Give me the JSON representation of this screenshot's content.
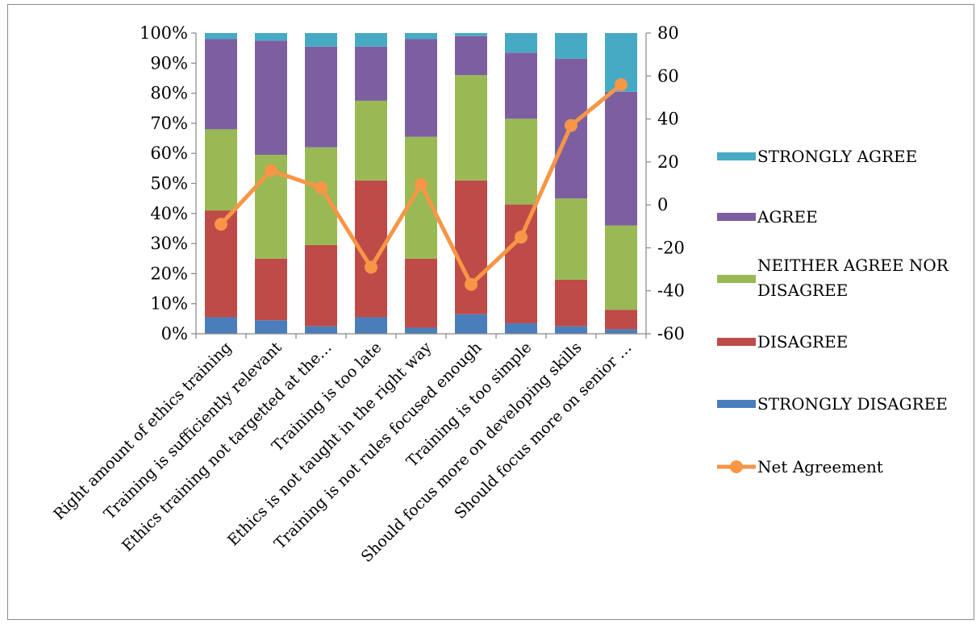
{
  "chart_data": {
    "type": "bar",
    "stacked": true,
    "stack_mode": "percent",
    "categories": [
      "Right amount of ethics training",
      "Training is sufficiently relevant",
      "Ethics training not targetted at the…",
      "Training is too late",
      "Ethics is not taught in the right way",
      "Training is not rules focused enough",
      "Training is too simple",
      "Should focus more on developing skills",
      "Should focus more on senior …"
    ],
    "series": [
      {
        "name": "STRONGLY DISAGREE",
        "color": "#4a7ebb",
        "values": [
          5.5,
          4.5,
          2.5,
          5.5,
          2.0,
          6.5,
          3.5,
          2.5,
          1.5
        ]
      },
      {
        "name": "DISAGREE",
        "color": "#be4b48",
        "values": [
          35.5,
          20.5,
          27.0,
          45.5,
          23.0,
          44.5,
          39.5,
          15.5,
          6.5
        ]
      },
      {
        "name": "NEITHER AGREE NOR DISAGREE",
        "color": "#98b954",
        "values": [
          27.0,
          34.5,
          32.5,
          26.5,
          40.5,
          35.0,
          28.5,
          27.0,
          28.0
        ]
      },
      {
        "name": "AGREE",
        "color": "#7d5fa0",
        "values": [
          30.0,
          38.0,
          33.5,
          18.0,
          32.5,
          13.0,
          22.0,
          46.5,
          44.5
        ]
      },
      {
        "name": "STRONGLY AGREE",
        "color": "#46aac5",
        "values": [
          2.0,
          2.5,
          4.5,
          4.5,
          2.0,
          1.0,
          6.5,
          8.5,
          19.5
        ]
      }
    ],
    "line_series": {
      "name": "Net Agreement",
      "color": "#f79646",
      "axis": "right",
      "values": [
        -9,
        16,
        8,
        -29,
        9.5,
        -37,
        -15,
        37,
        56
      ]
    },
    "left_axis": {
      "ylim": [
        0,
        100
      ],
      "ticks": [
        0,
        10,
        20,
        30,
        40,
        50,
        60,
        70,
        80,
        90,
        100
      ],
      "tick_labels": [
        "0%",
        "10%",
        "20%",
        "30%",
        "40%",
        "50%",
        "60%",
        "70%",
        "80%",
        "90%",
        "100%"
      ]
    },
    "right_axis": {
      "ylim": [
        -60,
        80
      ],
      "ticks": [
        -60,
        -40,
        -20,
        0,
        20,
        40,
        60,
        80
      ],
      "tick_labels": [
        "-60",
        "-40",
        "-20",
        "0",
        "20",
        "40",
        "60",
        "80"
      ]
    },
    "legend": {
      "placement": "right",
      "entries": [
        {
          "label_lines": [
            "STRONGLY AGREE"
          ],
          "series": "STRONGLY AGREE",
          "kind": "bar"
        },
        {
          "label_lines": [
            "AGREE"
          ],
          "series": "AGREE",
          "kind": "bar"
        },
        {
          "label_lines": [
            "NEITHER AGREE NOR",
            "DISAGREE"
          ],
          "series": "NEITHER AGREE NOR DISAGREE",
          "kind": "bar"
        },
        {
          "label_lines": [
            "DISAGREE"
          ],
          "series": "DISAGREE",
          "kind": "bar"
        },
        {
          "label_lines": [
            "STRONGLY DISAGREE"
          ],
          "series": "STRONGLY DISAGREE",
          "kind": "bar"
        },
        {
          "label_lines": [
            "Net Agreement"
          ],
          "series": "Net Agreement",
          "kind": "line"
        }
      ]
    },
    "grid": false,
    "title": "",
    "xlabel": "",
    "ylabel": ""
  }
}
